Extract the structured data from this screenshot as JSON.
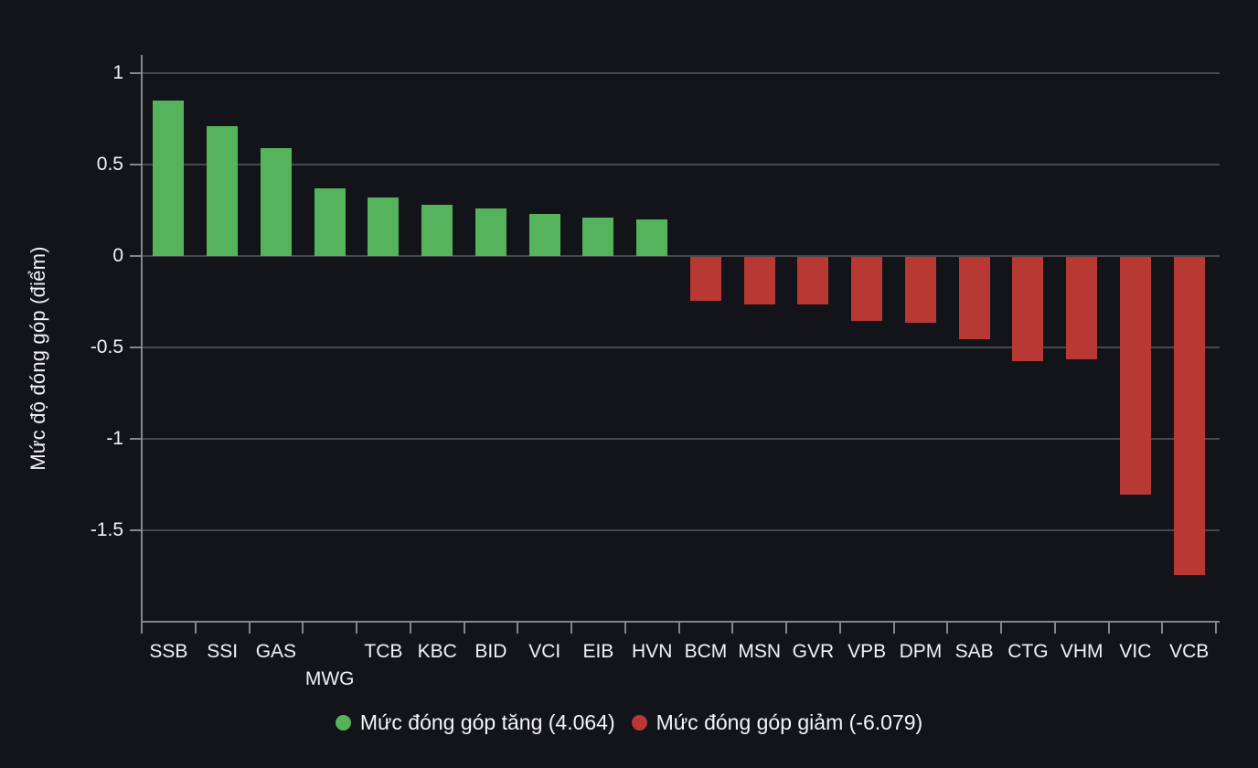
{
  "chart_data": {
    "type": "bar",
    "title": "",
    "xlabel": "",
    "ylabel": "Mức độ đóng góp (điểm)",
    "categories": [
      "SSB",
      "SSI",
      "GAS",
      "MWG",
      "TCB",
      "KBC",
      "BID",
      "VCI",
      "EIB",
      "HVN",
      "BCM",
      "MSN",
      "GVR",
      "VPB",
      "DPM",
      "SAB",
      "CTG",
      "VHM",
      "VIC",
      "VCB"
    ],
    "values": [
      0.85,
      0.71,
      0.59,
      0.37,
      0.32,
      0.28,
      0.26,
      0.23,
      0.21,
      0.2,
      -0.24,
      -0.26,
      -0.26,
      -0.35,
      -0.36,
      -0.45,
      -0.57,
      -0.56,
      -1.3,
      -1.74
    ],
    "ylim": [
      -2.0,
      1.1
    ],
    "yticks": [
      1,
      0.5,
      0,
      -0.5,
      -1,
      -1.5
    ],
    "ytick_labels": [
      "1",
      "0.5",
      "0",
      "-0.5",
      "-1",
      "-1.5"
    ],
    "second_row_labels": [
      "MWG"
    ],
    "grid": true,
    "legend_position": "bottom",
    "colors": {
      "up": "#55b35b",
      "down": "#b83834",
      "background": "#131419",
      "gridline": "#47484d",
      "axis": "#85858a",
      "text": "#f2f2f4"
    }
  },
  "legend": {
    "items": [
      {
        "label": "Mức đóng góp tăng (4.064)",
        "colorKey": "up"
      },
      {
        "label": "Mức đóng góp giảm (-6.079)",
        "colorKey": "down"
      }
    ]
  }
}
